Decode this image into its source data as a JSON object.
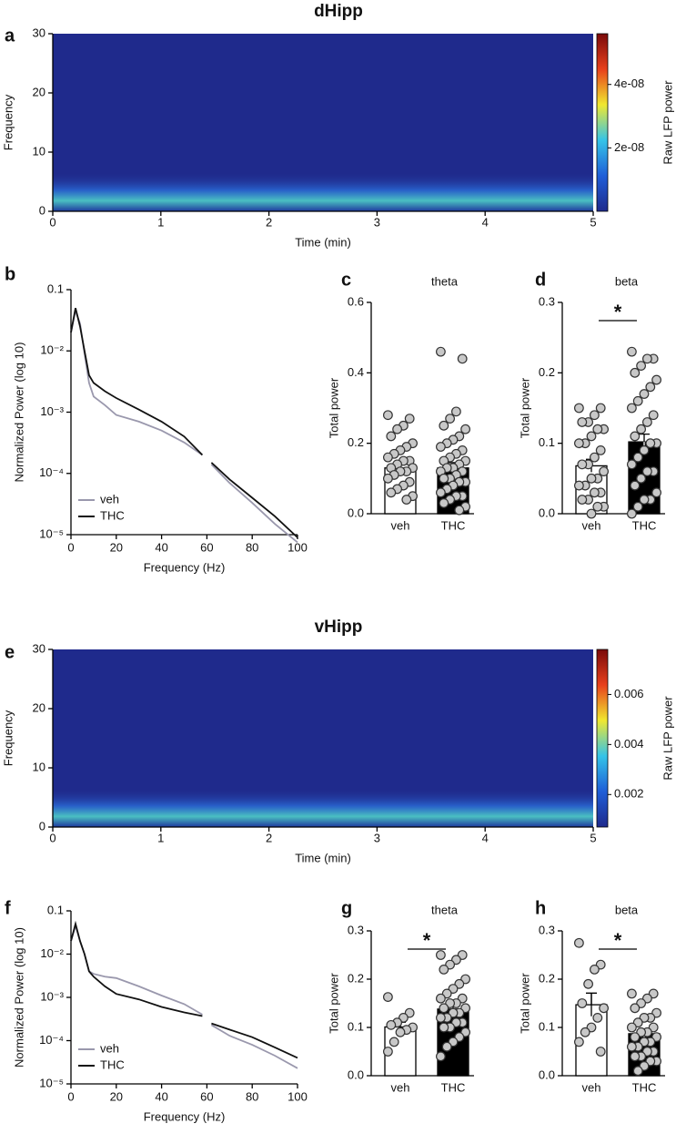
{
  "chart_data": [
    {
      "type": "heatmap",
      "panel": "a",
      "title": "dHipp",
      "x_label": "Time (min)",
      "y_label": "Frequency",
      "xlim": [
        0,
        5
      ],
      "xticks": [
        0,
        1,
        2,
        3,
        4,
        5
      ],
      "ylim": [
        0,
        30
      ],
      "yticks": [
        0,
        10,
        20,
        30
      ],
      "colorbar_label": "Raw LFP power",
      "clim": [
        0,
        5.6e-08
      ],
      "cticks": [
        {
          "value": 2e-08,
          "label": "2e-08"
        },
        {
          "value": 4e-08,
          "label": "4e-08"
        }
      ],
      "colormap": [
        "#1f2a8c",
        "#1f5ed8",
        "#35c4e8",
        "#f0e830",
        "#e8401c",
        "#7a0a0a"
      ]
    },
    {
      "type": "line",
      "panel": "b",
      "x_label": "Frequency (Hz)",
      "y_label": "Normalized Power (log 10)",
      "ylog": true,
      "legend": "lower left",
      "x": [
        0,
        2,
        4,
        6,
        8,
        10,
        15,
        20,
        30,
        40,
        50,
        58,
        60,
        62,
        70,
        80,
        90,
        100
      ],
      "xlim": [
        0,
        100
      ],
      "xticks": [
        0,
        20,
        40,
        60,
        80,
        100
      ],
      "ylim": [
        1e-05,
        0.1
      ],
      "yticks": [
        {
          "value": 1e-05,
          "label": "10⁻⁵"
        },
        {
          "value": 0.0001,
          "label": "10⁻⁴"
        },
        {
          "value": 0.001,
          "label": "10⁻³"
        },
        {
          "value": 0.01,
          "label": "10⁻²"
        },
        0.1
      ],
      "series": [
        {
          "name": "veh",
          "color": "#9a98ad",
          "values": [
            0.02,
            0.045,
            0.028,
            0.009,
            0.003,
            0.0018,
            0.0013,
            0.0009,
            0.0007,
            0.0005,
            0.00032,
            0.0002,
            null,
            0.00014,
            7e-05,
            3.3e-05,
            1.5e-05,
            7.5e-06
          ]
        },
        {
          "name": "THC",
          "color": "#111111",
          "values": [
            0.02,
            0.05,
            0.025,
            0.01,
            0.004,
            0.003,
            0.0022,
            0.0017,
            0.0011,
            0.0007,
            0.0004,
            0.0002,
            null,
            0.00015,
            8e-05,
            4e-05,
            2e-05,
            9e-06
          ]
        }
      ]
    },
    {
      "type": "bar",
      "panel": "c",
      "title": "theta",
      "y_label": "Total power",
      "categories": [
        "veh",
        "THC"
      ],
      "values": [
        0.13,
        0.13
      ],
      "errors": [
        0.012,
        0.015
      ],
      "colors": [
        "#ffffff",
        "#000000"
      ],
      "point_color": "#c8c8c8",
      "ylim": [
        0,
        0.6
      ],
      "yticks": [
        {
          "value": 0,
          "label": "0.0"
        },
        0.2,
        0.4,
        0.6
      ],
      "points": [
        [
          0.28,
          0.27,
          0.25,
          0.24,
          0.22,
          0.2,
          0.19,
          0.18,
          0.17,
          0.16,
          0.15,
          0.15,
          0.14,
          0.13,
          0.13,
          0.12,
          0.12,
          0.11,
          0.1,
          0.09,
          0.08,
          0.07,
          0.06,
          0.05,
          0.04
        ],
        [
          0.46,
          0.44,
          0.29,
          0.27,
          0.25,
          0.24,
          0.22,
          0.21,
          0.2,
          0.19,
          0.18,
          0.17,
          0.16,
          0.15,
          0.15,
          0.14,
          0.13,
          0.13,
          0.12,
          0.12,
          0.11,
          0.1,
          0.1,
          0.09,
          0.09,
          0.08,
          0.07,
          0.06,
          0.05,
          0.05,
          0.04,
          0.03,
          0.02,
          0.01
        ]
      ]
    },
    {
      "type": "bar",
      "panel": "d",
      "title": "beta",
      "y_label": "Total power",
      "categories": [
        "veh",
        "THC"
      ],
      "values": [
        0.068,
        0.102
      ],
      "errors": [
        0.009,
        0.011
      ],
      "colors": [
        "#ffffff",
        "#000000"
      ],
      "point_color": "#c8c8c8",
      "ylim": [
        0,
        0.3
      ],
      "yticks": [
        {
          "value": 0,
          "label": "0.0"
        },
        0.1,
        0.2,
        0.3
      ],
      "annotation": "*",
      "points": [
        [
          0.15,
          0.15,
          0.14,
          0.13,
          0.13,
          0.12,
          0.12,
          0.11,
          0.1,
          0.1,
          0.09,
          0.08,
          0.07,
          0.07,
          0.06,
          0.05,
          0.05,
          0.04,
          0.04,
          0.03,
          0.03,
          0.02,
          0.02,
          0.01,
          0.01,
          0
        ],
        [
          0.23,
          0.22,
          0.22,
          0.21,
          0.2,
          0.19,
          0.18,
          0.17,
          0.16,
          0.15,
          0.14,
          0.13,
          0.12,
          0.11,
          0.1,
          0.1,
          0.09,
          0.08,
          0.07,
          0.06,
          0.06,
          0.05,
          0.04,
          0.03,
          0.02,
          0.02,
          0.01,
          0
        ]
      ]
    },
    {
      "type": "heatmap",
      "panel": "e",
      "title": "vHipp",
      "x_label": "Time (min)",
      "y_label": "Frequency",
      "xlim": [
        0,
        5
      ],
      "xticks": [
        0,
        1,
        2,
        3,
        4,
        5
      ],
      "ylim": [
        0,
        30
      ],
      "yticks": [
        0,
        10,
        20,
        30
      ],
      "colorbar_label": "Raw LFP power",
      "clim": [
        0.0007,
        0.0078
      ],
      "cticks": [
        0.002,
        0.004,
        0.006
      ],
      "colormap": [
        "#1f2a8c",
        "#1f5ed8",
        "#35c4e8",
        "#f0e830",
        "#e8401c",
        "#7a0a0a"
      ]
    },
    {
      "type": "line",
      "panel": "f",
      "x_label": "Frequency (Hz)",
      "y_label": "Normalized Power (log 10)",
      "ylog": true,
      "legend": "lower left",
      "x": [
        0,
        2,
        4,
        6,
        8,
        10,
        15,
        20,
        30,
        40,
        50,
        58,
        60,
        62,
        70,
        80,
        90,
        100
      ],
      "xlim": [
        0,
        100
      ],
      "xticks": [
        0,
        20,
        40,
        60,
        80,
        100
      ],
      "ylim": [
        1e-05,
        0.1
      ],
      "yticks": [
        {
          "value": 1e-05,
          "label": "10⁻⁵"
        },
        {
          "value": 0.0001,
          "label": "10⁻⁴"
        },
        {
          "value": 0.001,
          "label": "10⁻³"
        },
        {
          "value": 0.01,
          "label": "10⁻²"
        },
        0.1
      ],
      "series": [
        {
          "name": "veh",
          "color": "#9a98ad",
          "values": [
            0.02,
            0.045,
            0.02,
            0.01,
            0.004,
            0.0035,
            0.003,
            0.0028,
            0.0018,
            0.0011,
            0.0007,
            0.0004,
            null,
            0.00023,
            0.00013,
            8e-05,
            4.5e-05,
            2.3e-05
          ]
        },
        {
          "name": "THC",
          "color": "#111111",
          "values": [
            0.02,
            0.05,
            0.02,
            0.01,
            0.004,
            0.003,
            0.0018,
            0.0012,
            0.0009,
            0.0006,
            0.00045,
            0.00037,
            null,
            0.00025,
            0.00018,
            0.00012,
            7e-05,
            4e-05
          ]
        }
      ]
    },
    {
      "type": "bar",
      "panel": "g",
      "title": "theta",
      "y_label": "Total power",
      "categories": [
        "veh",
        "THC"
      ],
      "values": [
        0.101,
        0.138
      ],
      "errors": [
        0.01,
        0.01
      ],
      "colors": [
        "#ffffff",
        "#000000"
      ],
      "point_color": "#c8c8c8",
      "ylim": [
        0,
        0.3
      ],
      "yticks": [
        {
          "value": 0,
          "label": "0.0"
        },
        0.1,
        0.2,
        0.3
      ],
      "annotation": "*",
      "points": [
        [
          0.163,
          0.13,
          0.12,
          0.11,
          0.105,
          0.1,
          0.095,
          0.09,
          0.07,
          0.05
        ],
        [
          0.25,
          0.25,
          0.24,
          0.23,
          0.22,
          0.2,
          0.19,
          0.18,
          0.17,
          0.16,
          0.16,
          0.15,
          0.15,
          0.14,
          0.14,
          0.13,
          0.13,
          0.12,
          0.12,
          0.11,
          0.11,
          0.1,
          0.1,
          0.09,
          0.08,
          0.07,
          0.06,
          0.04
        ]
      ]
    },
    {
      "type": "bar",
      "panel": "h",
      "title": "beta",
      "y_label": "Total power",
      "categories": [
        "veh",
        "THC"
      ],
      "values": [
        0.147,
        0.087
      ],
      "errors": [
        0.024,
        0.007
      ],
      "colors": [
        "#ffffff",
        "#000000"
      ],
      "point_color": "#c8c8c8",
      "ylim": [
        0,
        0.3
      ],
      "yticks": [
        {
          "value": 0,
          "label": "0.0"
        },
        0.1,
        0.2,
        0.3
      ],
      "annotation": "*",
      "points": [
        [
          0.275,
          0.23,
          0.22,
          0.19,
          0.15,
          0.14,
          0.12,
          0.1,
          0.09,
          0.07,
          0.05
        ],
        [
          0.17,
          0.17,
          0.16,
          0.15,
          0.14,
          0.13,
          0.12,
          0.12,
          0.11,
          0.1,
          0.1,
          0.09,
          0.09,
          0.08,
          0.08,
          0.07,
          0.07,
          0.06,
          0.06,
          0.05,
          0.05,
          0.04,
          0.04,
          0.03,
          0.03,
          0.02,
          0.01
        ]
      ]
    }
  ]
}
